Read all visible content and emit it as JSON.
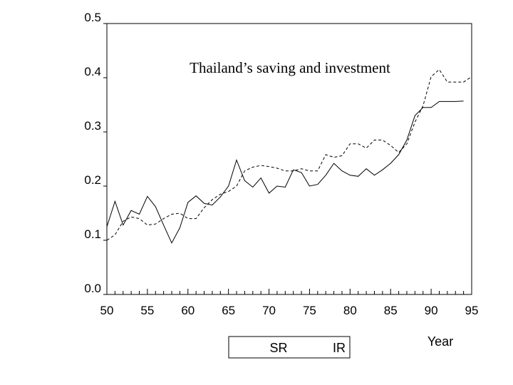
{
  "chart_data": {
    "type": "line",
    "title": "Thailand’s saving and investment",
    "xlabel": "Year",
    "ylabel": "",
    "xlim": [
      50,
      95
    ],
    "ylim": [
      0,
      0.5
    ],
    "x_ticks": [
      "50",
      "55",
      "60",
      "65",
      "70",
      "75",
      "80",
      "85",
      "90",
      "95"
    ],
    "y_ticks": [
      "0.0",
      "0.1",
      "0.2",
      "0.3",
      "0.4",
      "0.5"
    ],
    "legend_position": "bottom",
    "grid": false,
    "series": [
      {
        "name": "SR",
        "style": "solid",
        "color": "#000000",
        "x": [
          50,
          51,
          52,
          53,
          54,
          55,
          56,
          57,
          58,
          59,
          60,
          61,
          62,
          63,
          64,
          65,
          66,
          67,
          68,
          69,
          70,
          71,
          72,
          73,
          74,
          75,
          76,
          77,
          78,
          79,
          80,
          81,
          82,
          83,
          84,
          85,
          86,
          87,
          88,
          89,
          90,
          91,
          92,
          93,
          94,
          95
        ],
        "y": [
          0.125,
          0.172,
          0.128,
          0.155,
          0.148,
          0.181,
          0.162,
          0.128,
          0.095,
          0.123,
          0.17,
          0.182,
          0.168,
          0.165,
          0.18,
          0.2,
          0.248,
          0.21,
          0.198,
          0.215,
          0.187,
          0.2,
          0.198,
          0.23,
          0.225,
          0.2,
          0.203,
          0.22,
          0.242,
          0.228,
          0.22,
          0.218,
          0.232,
          0.22,
          0.23,
          0.242,
          0.258,
          0.285,
          0.33,
          0.345,
          0.345,
          0.356,
          0.356,
          0.356,
          0.357,
          null
        ]
      },
      {
        "name": "IR",
        "style": "dashed",
        "color": "#000000",
        "x": [
          50,
          51,
          52,
          53,
          54,
          55,
          56,
          57,
          58,
          59,
          60,
          61,
          62,
          63,
          64,
          65,
          66,
          67,
          68,
          69,
          70,
          71,
          72,
          73,
          74,
          75,
          76,
          77,
          78,
          79,
          80,
          81,
          82,
          83,
          84,
          85,
          86,
          87,
          88,
          89,
          90,
          91,
          92,
          93,
          94,
          95
        ],
        "y": [
          0.1,
          0.11,
          0.135,
          0.143,
          0.14,
          0.128,
          0.13,
          0.14,
          0.148,
          0.15,
          0.14,
          0.14,
          0.16,
          0.175,
          0.185,
          0.19,
          0.2,
          0.228,
          0.235,
          0.238,
          0.236,
          0.233,
          0.228,
          0.228,
          0.232,
          0.228,
          0.228,
          0.258,
          0.253,
          0.256,
          0.278,
          0.278,
          0.27,
          0.285,
          0.285,
          0.275,
          0.262,
          0.278,
          0.318,
          0.348,
          0.402,
          0.415,
          0.392,
          0.392,
          0.392,
          0.402
        ]
      }
    ]
  }
}
